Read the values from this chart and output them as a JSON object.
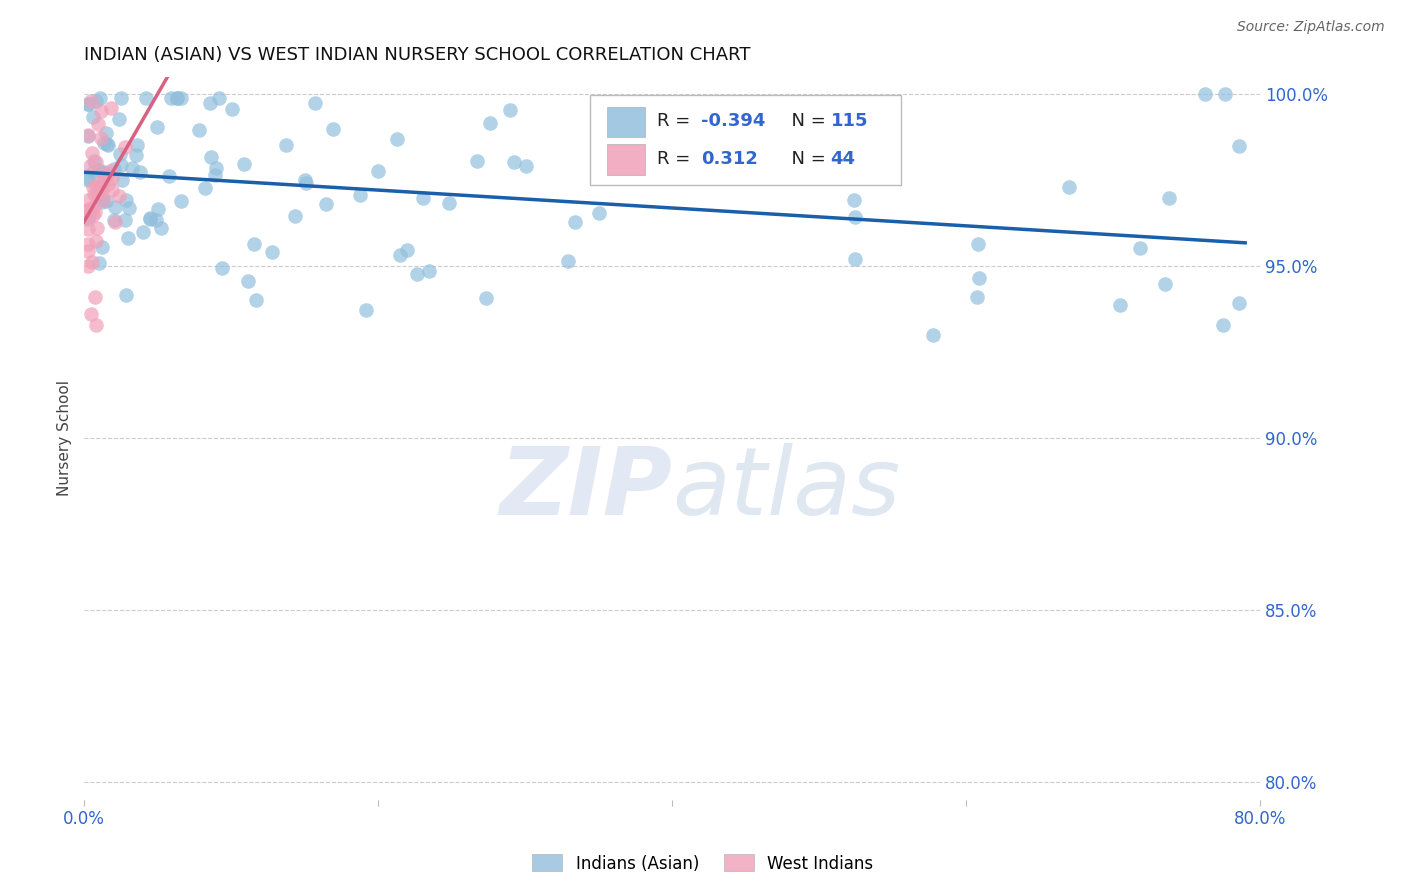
{
  "title": "INDIAN (ASIAN) VS WEST INDIAN NURSERY SCHOOL CORRELATION CHART",
  "source": "Source: ZipAtlas.com",
  "ylabel": "Nursery School",
  "legend_labels": [
    "Indians (Asian)",
    "West Indians"
  ],
  "R_blue": -0.394,
  "N_blue": 115,
  "R_pink": 0.312,
  "N_pink": 44,
  "blue_color": "#92bfdd",
  "pink_color": "#f0a0b8",
  "trendline_blue": "#1a5faa",
  "trendline_pink": "#d96080",
  "xlim": [
    0.0,
    0.8
  ],
  "ylim": [
    0.795,
    1.005
  ],
  "ytick_labels": [
    "80.0%",
    "85.0%",
    "90.0%",
    "95.0%",
    "100.0%"
  ],
  "ytick_vals": [
    0.8,
    0.85,
    0.9,
    0.95,
    1.0
  ],
  "watermark_zip": "ZIP",
  "watermark_atlas": "atlas",
  "background_color": "#ffffff",
  "grid_color": "#cccccc",
  "seed": 42
}
